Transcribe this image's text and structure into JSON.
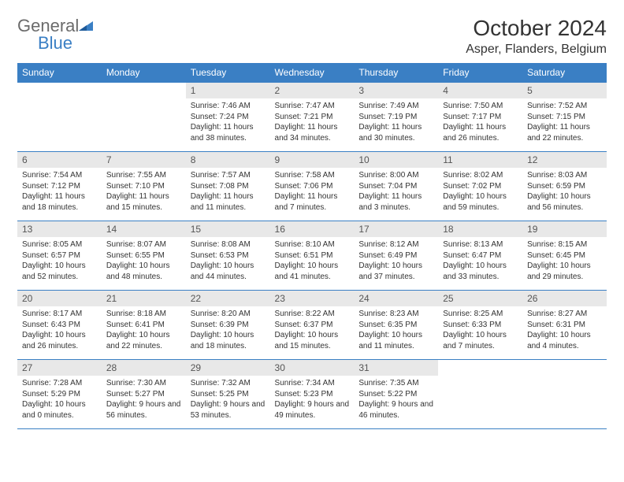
{
  "logo": {
    "general": "General",
    "blue": "Blue"
  },
  "title": "October 2024",
  "location": "Asper, Flanders, Belgium",
  "colors": {
    "header_bg": "#3a7fc4",
    "header_text": "#ffffff",
    "daynum_bg": "#e8e8e8",
    "border": "#3a7fc4",
    "body_text": "#333333",
    "logo_gray": "#6b6b6b",
    "logo_blue": "#3a7fc4"
  },
  "columns": [
    "Sunday",
    "Monday",
    "Tuesday",
    "Wednesday",
    "Thursday",
    "Friday",
    "Saturday"
  ],
  "weeks": [
    [
      {
        "n": "",
        "sr": "",
        "ss": "",
        "dl": ""
      },
      {
        "n": "",
        "sr": "",
        "ss": "",
        "dl": ""
      },
      {
        "n": "1",
        "sr": "Sunrise: 7:46 AM",
        "ss": "Sunset: 7:24 PM",
        "dl": "Daylight: 11 hours and 38 minutes."
      },
      {
        "n": "2",
        "sr": "Sunrise: 7:47 AM",
        "ss": "Sunset: 7:21 PM",
        "dl": "Daylight: 11 hours and 34 minutes."
      },
      {
        "n": "3",
        "sr": "Sunrise: 7:49 AM",
        "ss": "Sunset: 7:19 PM",
        "dl": "Daylight: 11 hours and 30 minutes."
      },
      {
        "n": "4",
        "sr": "Sunrise: 7:50 AM",
        "ss": "Sunset: 7:17 PM",
        "dl": "Daylight: 11 hours and 26 minutes."
      },
      {
        "n": "5",
        "sr": "Sunrise: 7:52 AM",
        "ss": "Sunset: 7:15 PM",
        "dl": "Daylight: 11 hours and 22 minutes."
      }
    ],
    [
      {
        "n": "6",
        "sr": "Sunrise: 7:54 AM",
        "ss": "Sunset: 7:12 PM",
        "dl": "Daylight: 11 hours and 18 minutes."
      },
      {
        "n": "7",
        "sr": "Sunrise: 7:55 AM",
        "ss": "Sunset: 7:10 PM",
        "dl": "Daylight: 11 hours and 15 minutes."
      },
      {
        "n": "8",
        "sr": "Sunrise: 7:57 AM",
        "ss": "Sunset: 7:08 PM",
        "dl": "Daylight: 11 hours and 11 minutes."
      },
      {
        "n": "9",
        "sr": "Sunrise: 7:58 AM",
        "ss": "Sunset: 7:06 PM",
        "dl": "Daylight: 11 hours and 7 minutes."
      },
      {
        "n": "10",
        "sr": "Sunrise: 8:00 AM",
        "ss": "Sunset: 7:04 PM",
        "dl": "Daylight: 11 hours and 3 minutes."
      },
      {
        "n": "11",
        "sr": "Sunrise: 8:02 AM",
        "ss": "Sunset: 7:02 PM",
        "dl": "Daylight: 10 hours and 59 minutes."
      },
      {
        "n": "12",
        "sr": "Sunrise: 8:03 AM",
        "ss": "Sunset: 6:59 PM",
        "dl": "Daylight: 10 hours and 56 minutes."
      }
    ],
    [
      {
        "n": "13",
        "sr": "Sunrise: 8:05 AM",
        "ss": "Sunset: 6:57 PM",
        "dl": "Daylight: 10 hours and 52 minutes."
      },
      {
        "n": "14",
        "sr": "Sunrise: 8:07 AM",
        "ss": "Sunset: 6:55 PM",
        "dl": "Daylight: 10 hours and 48 minutes."
      },
      {
        "n": "15",
        "sr": "Sunrise: 8:08 AM",
        "ss": "Sunset: 6:53 PM",
        "dl": "Daylight: 10 hours and 44 minutes."
      },
      {
        "n": "16",
        "sr": "Sunrise: 8:10 AM",
        "ss": "Sunset: 6:51 PM",
        "dl": "Daylight: 10 hours and 41 minutes."
      },
      {
        "n": "17",
        "sr": "Sunrise: 8:12 AM",
        "ss": "Sunset: 6:49 PM",
        "dl": "Daylight: 10 hours and 37 minutes."
      },
      {
        "n": "18",
        "sr": "Sunrise: 8:13 AM",
        "ss": "Sunset: 6:47 PM",
        "dl": "Daylight: 10 hours and 33 minutes."
      },
      {
        "n": "19",
        "sr": "Sunrise: 8:15 AM",
        "ss": "Sunset: 6:45 PM",
        "dl": "Daylight: 10 hours and 29 minutes."
      }
    ],
    [
      {
        "n": "20",
        "sr": "Sunrise: 8:17 AM",
        "ss": "Sunset: 6:43 PM",
        "dl": "Daylight: 10 hours and 26 minutes."
      },
      {
        "n": "21",
        "sr": "Sunrise: 8:18 AM",
        "ss": "Sunset: 6:41 PM",
        "dl": "Daylight: 10 hours and 22 minutes."
      },
      {
        "n": "22",
        "sr": "Sunrise: 8:20 AM",
        "ss": "Sunset: 6:39 PM",
        "dl": "Daylight: 10 hours and 18 minutes."
      },
      {
        "n": "23",
        "sr": "Sunrise: 8:22 AM",
        "ss": "Sunset: 6:37 PM",
        "dl": "Daylight: 10 hours and 15 minutes."
      },
      {
        "n": "24",
        "sr": "Sunrise: 8:23 AM",
        "ss": "Sunset: 6:35 PM",
        "dl": "Daylight: 10 hours and 11 minutes."
      },
      {
        "n": "25",
        "sr": "Sunrise: 8:25 AM",
        "ss": "Sunset: 6:33 PM",
        "dl": "Daylight: 10 hours and 7 minutes."
      },
      {
        "n": "26",
        "sr": "Sunrise: 8:27 AM",
        "ss": "Sunset: 6:31 PM",
        "dl": "Daylight: 10 hours and 4 minutes."
      }
    ],
    [
      {
        "n": "27",
        "sr": "Sunrise: 7:28 AM",
        "ss": "Sunset: 5:29 PM",
        "dl": "Daylight: 10 hours and 0 minutes."
      },
      {
        "n": "28",
        "sr": "Sunrise: 7:30 AM",
        "ss": "Sunset: 5:27 PM",
        "dl": "Daylight: 9 hours and 56 minutes."
      },
      {
        "n": "29",
        "sr": "Sunrise: 7:32 AM",
        "ss": "Sunset: 5:25 PM",
        "dl": "Daylight: 9 hours and 53 minutes."
      },
      {
        "n": "30",
        "sr": "Sunrise: 7:34 AM",
        "ss": "Sunset: 5:23 PM",
        "dl": "Daylight: 9 hours and 49 minutes."
      },
      {
        "n": "31",
        "sr": "Sunrise: 7:35 AM",
        "ss": "Sunset: 5:22 PM",
        "dl": "Daylight: 9 hours and 46 minutes."
      },
      {
        "n": "",
        "sr": "",
        "ss": "",
        "dl": ""
      },
      {
        "n": "",
        "sr": "",
        "ss": "",
        "dl": ""
      }
    ]
  ]
}
